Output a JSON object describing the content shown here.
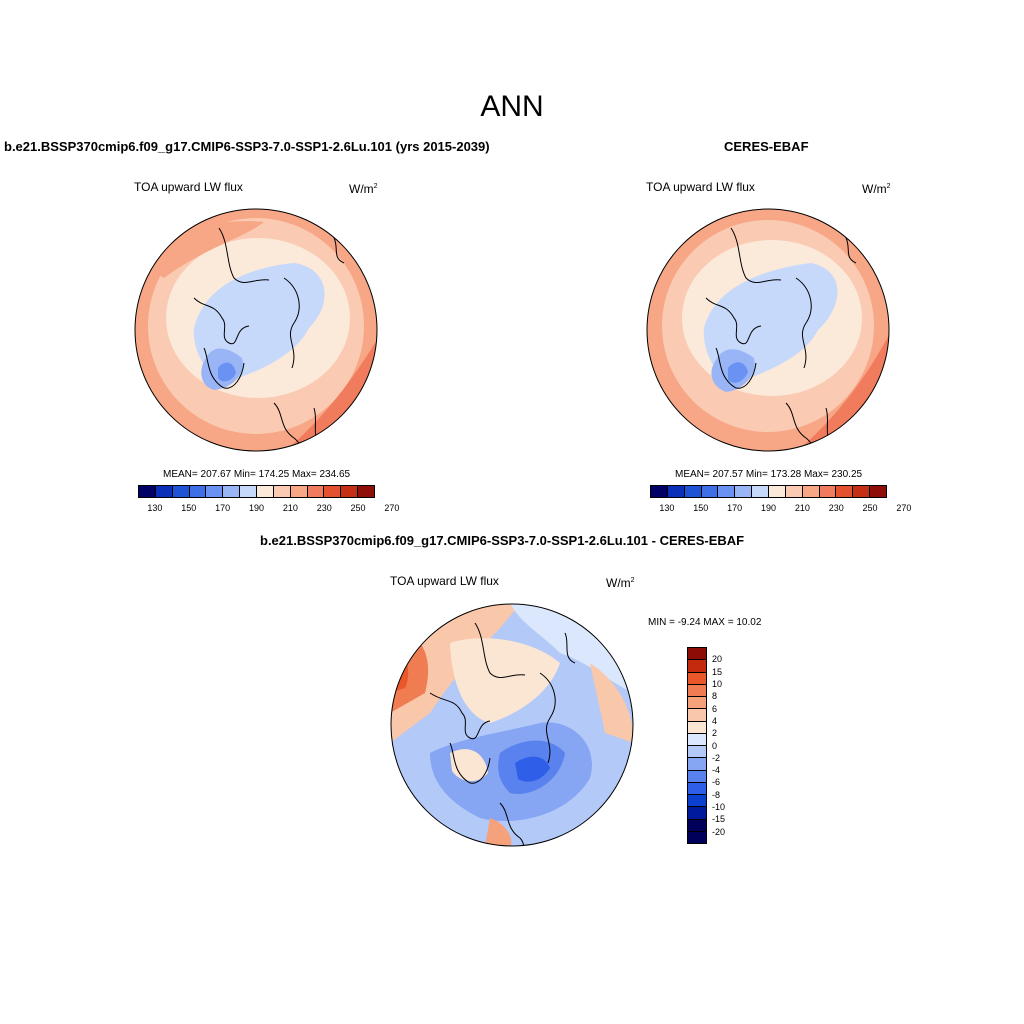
{
  "figure": {
    "title": "ANN",
    "colors": {
      "abs_levels": [
        "#000066",
        "#0a2fb8",
        "#1f53d6",
        "#3f6fe6",
        "#6a92f2",
        "#9ab5f6",
        "#c6d9fb",
        "#fbe9da",
        "#fbcab3",
        "#f7a686",
        "#f07c5d",
        "#e4512f",
        "#c42f15",
        "#8f0f08"
      ],
      "diff_levels": [
        "#00005a",
        "#001a9e",
        "#0a3fd0",
        "#2f5fe8",
        "#5a82ef",
        "#86a5f3",
        "#b3c9f8",
        "#dae7fc",
        "#fbe6d3",
        "#f9c7aa",
        "#f5a17c",
        "#f07c52",
        "#e9572a",
        "#c42b0e",
        "#8d0c05"
      ]
    }
  },
  "panel_model": {
    "case_title": "b.e21.BSSP370cmip6.f09_g17.CMIP6-SSP3-7.0-SSP1-2.6Lu.101 (yrs 2015-2039)",
    "variable": "TOA upward LW flux",
    "units": "W/m",
    "units_exp": "2",
    "stats": "MEAN= 207.67  Min= 174.25  Max= 234.65",
    "colorbar_ticks": [
      "130",
      "150",
      "170",
      "190",
      "210",
      "230",
      "250",
      "270"
    ]
  },
  "panel_obs": {
    "case_title": "CERES-EBAF",
    "variable": "TOA upward LW flux",
    "units": "W/m",
    "units_exp": "2",
    "stats": "MEAN= 207.57  Min= 173.28  Max= 230.25",
    "colorbar_ticks": [
      "130",
      "150",
      "170",
      "190",
      "210",
      "230",
      "250",
      "270"
    ]
  },
  "panel_diff": {
    "case_title": "b.e21.BSSP370cmip6.f09_g17.CMIP6-SSP3-7.0-SSP1-2.6Lu.101 - CERES-EBAF",
    "variable": "TOA upward LW flux",
    "units": "W/m",
    "units_exp": "2",
    "stats": "MIN =  -9.24 MAX =  10.02",
    "colorbar_ticks": [
      "20",
      "15",
      "10",
      "8",
      "6",
      "4",
      "2",
      "0",
      "-2",
      "-4",
      "-6",
      "-8",
      "-10",
      "-15",
      "-20"
    ]
  }
}
